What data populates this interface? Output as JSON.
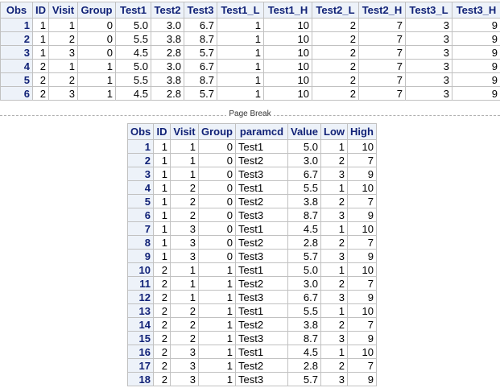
{
  "table1": {
    "header": [
      "Obs",
      "ID",
      "Visit",
      "Group",
      "Test1",
      "Test2",
      "Test3",
      "Test1_L",
      "Test1_H",
      "Test2_L",
      "Test2_H",
      "Test3_L",
      "Test3_H"
    ],
    "rows": [
      [
        "1",
        "1",
        "1",
        "0",
        "5.0",
        "3.0",
        "6.7",
        "1",
        "10",
        "2",
        "7",
        "3",
        "9"
      ],
      [
        "2",
        "1",
        "2",
        "0",
        "5.5",
        "3.8",
        "8.7",
        "1",
        "10",
        "2",
        "7",
        "3",
        "9"
      ],
      [
        "3",
        "1",
        "3",
        "0",
        "4.5",
        "2.8",
        "5.7",
        "1",
        "10",
        "2",
        "7",
        "3",
        "9"
      ],
      [
        "4",
        "2",
        "1",
        "1",
        "5.0",
        "3.0",
        "6.7",
        "1",
        "10",
        "2",
        "7",
        "3",
        "9"
      ],
      [
        "5",
        "2",
        "2",
        "1",
        "5.5",
        "3.8",
        "8.7",
        "1",
        "10",
        "2",
        "7",
        "3",
        "9"
      ],
      [
        "6",
        "2",
        "3",
        "1",
        "4.5",
        "2.8",
        "5.7",
        "1",
        "10",
        "2",
        "7",
        "3",
        "9"
      ]
    ]
  },
  "page_break": "Page Break",
  "table2": {
    "header": [
      "Obs",
      "ID",
      "Visit",
      "Group",
      "paramcd",
      "Value",
      "Low",
      "High"
    ],
    "rows": [
      [
        "1",
        "1",
        "1",
        "0",
        "Test1",
        "5.0",
        "1",
        "10"
      ],
      [
        "2",
        "1",
        "1",
        "0",
        "Test2",
        "3.0",
        "2",
        "7"
      ],
      [
        "3",
        "1",
        "1",
        "0",
        "Test3",
        "6.7",
        "3",
        "9"
      ],
      [
        "4",
        "1",
        "2",
        "0",
        "Test1",
        "5.5",
        "1",
        "10"
      ],
      [
        "5",
        "1",
        "2",
        "0",
        "Test2",
        "3.8",
        "2",
        "7"
      ],
      [
        "6",
        "1",
        "2",
        "0",
        "Test3",
        "8.7",
        "3",
        "9"
      ],
      [
        "7",
        "1",
        "3",
        "0",
        "Test1",
        "4.5",
        "1",
        "10"
      ],
      [
        "8",
        "1",
        "3",
        "0",
        "Test2",
        "2.8",
        "2",
        "7"
      ],
      [
        "9",
        "1",
        "3",
        "0",
        "Test3",
        "5.7",
        "3",
        "9"
      ],
      [
        "10",
        "2",
        "1",
        "1",
        "Test1",
        "5.0",
        "1",
        "10"
      ],
      [
        "11",
        "2",
        "1",
        "1",
        "Test2",
        "3.0",
        "2",
        "7"
      ],
      [
        "12",
        "2",
        "1",
        "1",
        "Test3",
        "6.7",
        "3",
        "9"
      ],
      [
        "13",
        "2",
        "2",
        "1",
        "Test1",
        "5.5",
        "1",
        "10"
      ],
      [
        "14",
        "2",
        "2",
        "1",
        "Test2",
        "3.8",
        "2",
        "7"
      ],
      [
        "15",
        "2",
        "2",
        "1",
        "Test3",
        "8.7",
        "3",
        "9"
      ],
      [
        "16",
        "2",
        "3",
        "1",
        "Test1",
        "4.5",
        "1",
        "10"
      ],
      [
        "17",
        "2",
        "3",
        "1",
        "Test2",
        "2.8",
        "2",
        "7"
      ],
      [
        "18",
        "2",
        "3",
        "1",
        "Test3",
        "5.7",
        "3",
        "9"
      ]
    ]
  }
}
